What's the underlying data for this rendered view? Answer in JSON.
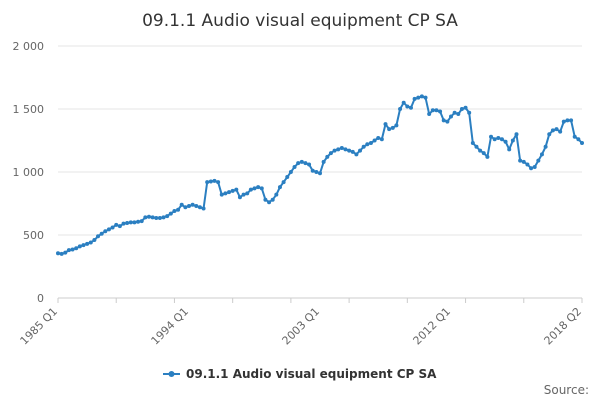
{
  "chart_data": {
    "type": "line",
    "title": "09.1.1 Audio visual equipment CP SA",
    "xlabel": "",
    "ylabel": "",
    "ylim": [
      0,
      2000
    ],
    "yticks": [
      0,
      500,
      1000,
      1500,
      2000
    ],
    "ytick_labels": [
      "0",
      "500",
      "1 000",
      "1 500",
      "2 000"
    ],
    "xtick_labels": [
      "1985 Q1",
      "1994 Q1",
      "2003 Q1",
      "2012 Q1",
      "2018 Q2"
    ],
    "grid": true,
    "legend_position": "bottom-center",
    "color": "#2b7fc1",
    "start": "1985 Q1",
    "end": "2018 Q2",
    "series": [
      {
        "name": "09.1.1 Audio visual equipment CP SA",
        "values": [
          355,
          350,
          360,
          380,
          385,
          395,
          410,
          420,
          430,
          440,
          460,
          490,
          510,
          530,
          545,
          560,
          580,
          570,
          590,
          595,
          600,
          600,
          605,
          610,
          640,
          645,
          640,
          635,
          635,
          640,
          650,
          670,
          690,
          700,
          740,
          720,
          730,
          740,
          730,
          720,
          710,
          920,
          925,
          930,
          920,
          820,
          830,
          840,
          850,
          860,
          800,
          820,
          830,
          860,
          870,
          880,
          870,
          780,
          760,
          780,
          820,
          880,
          920,
          960,
          1000,
          1040,
          1070,
          1080,
          1070,
          1060,
          1010,
          1000,
          990,
          1080,
          1120,
          1150,
          1170,
          1180,
          1190,
          1180,
          1170,
          1160,
          1140,
          1170,
          1200,
          1220,
          1230,
          1250,
          1270,
          1260,
          1380,
          1340,
          1350,
          1370,
          1500,
          1550,
          1520,
          1510,
          1580,
          1590,
          1600,
          1590,
          1460,
          1490,
          1490,
          1480,
          1410,
          1400,
          1440,
          1470,
          1460,
          1500,
          1510,
          1470,
          1230,
          1200,
          1170,
          1150,
          1120,
          1280,
          1260,
          1270,
          1260,
          1240,
          1180,
          1250,
          1300,
          1090,
          1080,
          1060,
          1030,
          1040,
          1090,
          1140,
          1200,
          1300,
          1330,
          1340,
          1320,
          1400,
          1410,
          1410,
          1280,
          1260,
          1230
        ]
      }
    ]
  },
  "source_label": "Source:"
}
